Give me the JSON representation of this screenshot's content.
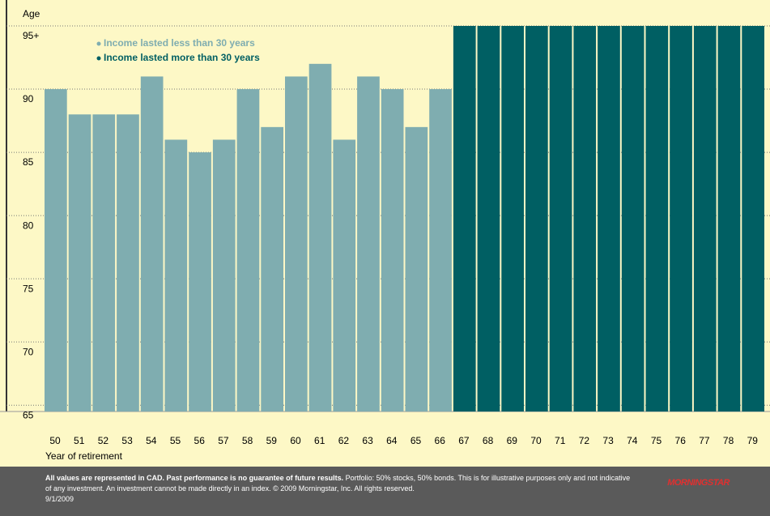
{
  "chart_data": {
    "type": "bar",
    "y_label": "Age",
    "x_label": "Year of retirement",
    "categories": [
      "50",
      "51",
      "52",
      "53",
      "54",
      "55",
      "56",
      "57",
      "58",
      "59",
      "60",
      "61",
      "62",
      "63",
      "64",
      "65",
      "66",
      "67",
      "68",
      "69",
      "70",
      "71",
      "72",
      "73",
      "74",
      "75",
      "76",
      "77",
      "78",
      "79"
    ],
    "series": [
      {
        "name": "Income lasted less than 30 years",
        "color": "#7fadb0",
        "values": [
          90,
          88,
          88,
          88,
          91,
          86,
          85,
          86,
          90,
          87,
          91,
          92,
          86,
          91,
          90,
          87,
          90,
          null,
          null,
          null,
          null,
          null,
          null,
          null,
          null,
          null,
          null,
          null,
          null,
          null
        ]
      },
      {
        "name": "Income lasted more than 30 years",
        "color": "#005f63",
        "values": [
          null,
          null,
          null,
          null,
          null,
          null,
          null,
          null,
          null,
          null,
          null,
          null,
          null,
          null,
          null,
          null,
          null,
          95,
          95,
          95,
          95,
          95,
          95,
          95,
          95,
          95,
          95,
          95,
          95,
          95
        ]
      }
    ],
    "ylim": [
      64.5,
      95
    ],
    "yticks": [
      65,
      70,
      75,
      80,
      85,
      90,
      {
        "value": 95,
        "label": "95+"
      }
    ],
    "grid": true
  },
  "footer": {
    "bold": "All values are represented in CAD. Past performance is no guarantee of future results.",
    "text": "Portfolio: 50% stocks, 50% bonds. This is for illustrative purposes only and not indicative of any investment. An investment cannot be made directly in an index. © 2009 Morningstar, Inc. All rights reserved.",
    "date": "9/1/2009",
    "logo": "MORNINGSTAR"
  }
}
